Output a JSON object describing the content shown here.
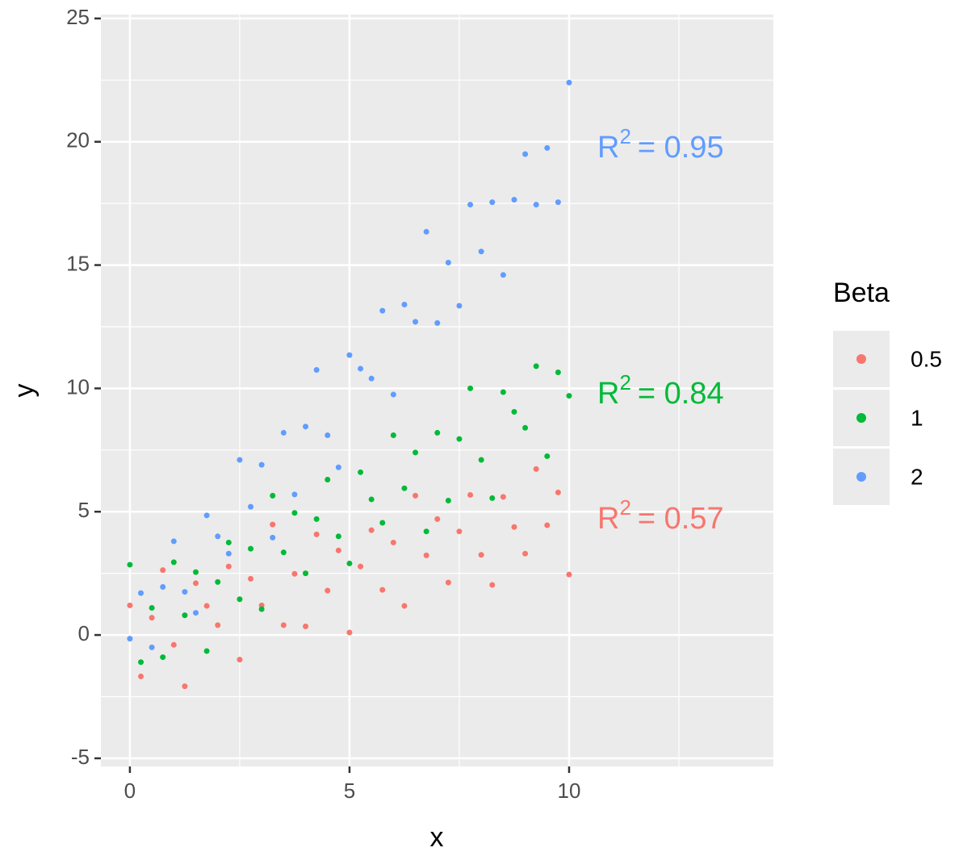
{
  "chart_data": {
    "type": "scatter",
    "xlabel": "x",
    "ylabel": "y",
    "xlim": [
      -0.66,
      14.65
    ],
    "ylim": [
      -5.33,
      25.16
    ],
    "xticks": [
      0,
      5,
      10
    ],
    "yticks": [
      -5,
      0,
      5,
      10,
      15,
      20,
      25
    ],
    "grid": true,
    "minor_grid": true,
    "legend_title": "Beta",
    "legend": "right",
    "series": [
      {
        "name": "0.5",
        "color": "#f8766d",
        "annotation": {
          "text": "R",
          "sup": "2",
          "rest": "= 0.57"
        },
        "x": [
          0,
          0.25,
          0.5,
          0.75,
          1,
          1.25,
          1.5,
          1.75,
          2,
          2.25,
          2.5,
          2.75,
          3,
          3.25,
          3.5,
          3.75,
          4,
          4.25,
          4.5,
          4.75,
          5,
          5.25,
          5.5,
          5.75,
          6,
          6.25,
          6.5,
          6.75,
          7,
          7.25,
          7.5,
          7.75,
          8,
          8.25,
          8.5,
          8.75,
          9,
          9.25,
          9.5,
          9.75,
          10
        ],
        "values": [
          1.2,
          -1.68,
          0.7,
          2.63,
          -0.4,
          -2.08,
          2.1,
          1.18,
          0.4,
          2.78,
          -1.0,
          2.28,
          1.2,
          4.48,
          0.4,
          2.48,
          0.35,
          4.08,
          1.8,
          3.43,
          0.1,
          2.78,
          4.25,
          1.83,
          3.75,
          1.18,
          5.65,
          3.23,
          4.7,
          2.13,
          4.2,
          5.68,
          3.25,
          2.03,
          5.6,
          4.38,
          3.3,
          6.73,
          4.45,
          5.78,
          2.45
        ]
      },
      {
        "name": "1",
        "color": "#00ba38",
        "annotation": {
          "text": "R",
          "sup": "2",
          "rest": "= 0.84"
        },
        "x": [
          0,
          0.25,
          0.5,
          0.75,
          1,
          1.25,
          1.5,
          1.75,
          2,
          2.25,
          2.5,
          2.75,
          3,
          3.25,
          3.5,
          3.75,
          4,
          4.25,
          4.5,
          4.75,
          5,
          5.25,
          5.5,
          5.75,
          6,
          6.25,
          6.5,
          6.75,
          7,
          7.25,
          7.5,
          7.75,
          8,
          8.25,
          8.5,
          8.75,
          9,
          9.25,
          9.5,
          9.75,
          10
        ],
        "values": [
          2.85,
          -1.1,
          1.1,
          -0.9,
          2.95,
          0.8,
          2.55,
          -0.65,
          2.15,
          3.75,
          1.45,
          3.5,
          1.05,
          5.65,
          3.35,
          4.95,
          2.5,
          4.7,
          6.3,
          4.0,
          2.9,
          6.6,
          5.5,
          4.55,
          8.1,
          5.95,
          7.4,
          4.2,
          8.2,
          5.45,
          7.95,
          10.0,
          7.1,
          5.55,
          9.85,
          9.05,
          8.4,
          10.9,
          7.25,
          10.65,
          9.7
        ]
      },
      {
        "name": "2",
        "color": "#619cff",
        "annotation": {
          "text": "R",
          "sup": "2",
          "rest": "= 0.95"
        },
        "x": [
          0,
          0.25,
          0.5,
          0.75,
          1,
          1.25,
          1.5,
          1.75,
          2,
          2.25,
          2.5,
          2.75,
          3,
          3.25,
          3.5,
          3.75,
          4,
          4.25,
          4.5,
          4.75,
          5,
          5.25,
          5.5,
          5.75,
          6,
          6.25,
          6.5,
          6.75,
          7,
          7.25,
          7.5,
          7.75,
          8,
          8.25,
          8.5,
          8.75,
          9,
          9.25,
          9.5,
          9.75,
          10
        ],
        "values": [
          -0.15,
          1.7,
          -0.5,
          1.95,
          3.8,
          1.75,
          0.9,
          4.85,
          4,
          3.3,
          7.1,
          5.2,
          6.9,
          3.95,
          8.2,
          5.7,
          8.45,
          10.75,
          8.1,
          6.8,
          11.35,
          10.8,
          10.4,
          13.15,
          9.75,
          13.4,
          12.7,
          16.35,
          12.65,
          15.1,
          13.35,
          17.45,
          15.55,
          17.55,
          14.6,
          17.65,
          19.5,
          17.45,
          19.75,
          17.55,
          22.4
        ]
      }
    ]
  }
}
